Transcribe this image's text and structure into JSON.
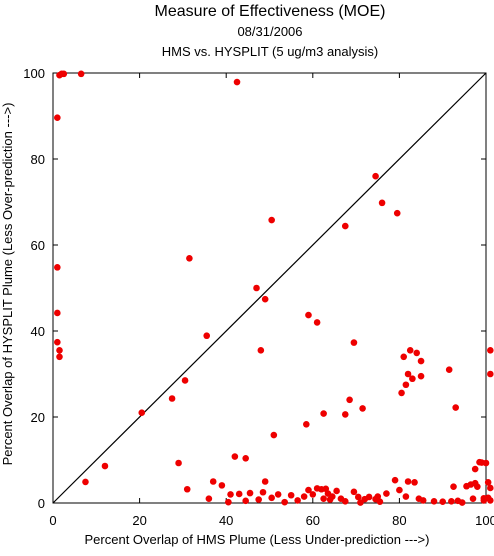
{
  "chart_data": {
    "type": "scatter",
    "title": "Measure of Effectiveness (MOE)",
    "subtitle_date": "08/31/2006",
    "subtitle_analysis": "HMS vs. HYSPLIT  (5 ug/m3 analysis)",
    "xlabel": "Percent Overlap of HMS Plume (Less Under-prediction --->)",
    "ylabel": "Percent Overlap of HYSPLIT Plume (Less Over-prediction --->)",
    "xlim": [
      0,
      100
    ],
    "ylim": [
      0,
      100
    ],
    "x_ticks": [
      0,
      20,
      40,
      60,
      80,
      100
    ],
    "y_ticks": [
      0,
      20,
      40,
      60,
      80,
      100
    ],
    "reference_line": "y = x",
    "grid": false,
    "point_color": "#ee0000",
    "points": [
      [
        1.5,
        99.5
      ],
      [
        2.0,
        99.8
      ],
      [
        2.5,
        99.8
      ],
      [
        6.5,
        99.8
      ],
      [
        1.0,
        89.6
      ],
      [
        1.0,
        54.8
      ],
      [
        1.0,
        44.2
      ],
      [
        1.0,
        37.4
      ],
      [
        1.5,
        35.5
      ],
      [
        1.5,
        34.0
      ],
      [
        7.5,
        4.9
      ],
      [
        12.0,
        8.6
      ],
      [
        20.5,
        21.0
      ],
      [
        27.5,
        24.3
      ],
      [
        29.0,
        9.3
      ],
      [
        30.5,
        28.5
      ],
      [
        31.5,
        56.9
      ],
      [
        31.0,
        3.2
      ],
      [
        35.5,
        38.9
      ],
      [
        42.5,
        97.9
      ],
      [
        44.5,
        10.4
      ],
      [
        47.0,
        50.0
      ],
      [
        48.0,
        35.5
      ],
      [
        49.0,
        47.4
      ],
      [
        50.5,
        65.8
      ],
      [
        51.0,
        15.8
      ],
      [
        58.5,
        18.3
      ],
      [
        59.0,
        43.7
      ],
      [
        61.0,
        42.0
      ],
      [
        62.5,
        20.8
      ],
      [
        67.5,
        64.4
      ],
      [
        67.5,
        20.6
      ],
      [
        68.5,
        24.0
      ],
      [
        69.5,
        37.3
      ],
      [
        71.5,
        22.0
      ],
      [
        74.5,
        76.0
      ],
      [
        76.0,
        69.8
      ],
      [
        79.5,
        67.4
      ],
      [
        80.5,
        25.6
      ],
      [
        81.5,
        27.5
      ],
      [
        81.0,
        34.0
      ],
      [
        82.0,
        30.0
      ],
      [
        82.5,
        35.5
      ],
      [
        83.0,
        28.9
      ],
      [
        84.0,
        34.9
      ],
      [
        85.0,
        33.0
      ],
      [
        85.0,
        29.5
      ],
      [
        91.5,
        31.0
      ],
      [
        93.0,
        22.2
      ],
      [
        101.0,
        35.5
      ],
      [
        101.0,
        30.0
      ],
      [
        37.0,
        5.0
      ],
      [
        39.0,
        4.1
      ],
      [
        42.0,
        10.8
      ],
      [
        36.0,
        1.0
      ],
      [
        40.5,
        0.2
      ],
      [
        41.0,
        2.0
      ],
      [
        43.0,
        2.1
      ],
      [
        44.5,
        0.5
      ],
      [
        45.5,
        2.3
      ],
      [
        47.5,
        0.8
      ],
      [
        48.5,
        2.5
      ],
      [
        49.0,
        5.0
      ],
      [
        50.5,
        1.2
      ],
      [
        52.0,
        2.0
      ],
      [
        53.5,
        0.2
      ],
      [
        55.0,
        1.8
      ],
      [
        56.5,
        0.6
      ],
      [
        58.0,
        1.5
      ],
      [
        59.0,
        3.0
      ],
      [
        60.0,
        2.0
      ],
      [
        61.0,
        3.4
      ],
      [
        62.0,
        3.2
      ],
      [
        62.5,
        1.0
      ],
      [
        63.0,
        3.3
      ],
      [
        63.5,
        2.2
      ],
      [
        64.0,
        0.8
      ],
      [
        64.5,
        1.5
      ],
      [
        65.5,
        2.8
      ],
      [
        66.5,
        1.0
      ],
      [
        67.5,
        0.4
      ],
      [
        69.5,
        2.6
      ],
      [
        70.5,
        1.4
      ],
      [
        71.0,
        0.1
      ],
      [
        72.0,
        0.9
      ],
      [
        73.0,
        1.4
      ],
      [
        74.5,
        0.9
      ],
      [
        75.0,
        1.5
      ],
      [
        75.5,
        0.3
      ],
      [
        77.0,
        2.2
      ],
      [
        79.0,
        5.3
      ],
      [
        80.0,
        3.0
      ],
      [
        81.5,
        1.5
      ],
      [
        82.0,
        5.0
      ],
      [
        83.5,
        4.8
      ],
      [
        84.5,
        1.0
      ],
      [
        85.5,
        0.6
      ],
      [
        88.0,
        0.4
      ],
      [
        90.0,
        0.3
      ],
      [
        92.0,
        0.4
      ],
      [
        92.5,
        3.8
      ],
      [
        93.5,
        0.5
      ],
      [
        94.5,
        0.1
      ],
      [
        95.5,
        3.9
      ],
      [
        96.5,
        4.3
      ],
      [
        97.0,
        1.0
      ],
      [
        97.5,
        4.6
      ],
      [
        98.0,
        3.8
      ],
      [
        98.5,
        9.5
      ],
      [
        99.0,
        9.4
      ],
      [
        99.5,
        1.1
      ],
      [
        100.0,
        9.3
      ],
      [
        100.5,
        4.8
      ],
      [
        101.0,
        0.6
      ],
      [
        101.0,
        3.5
      ],
      [
        100.5,
        1.2
      ],
      [
        97.5,
        7.9
      ],
      [
        99.5,
        0.6
      ]
    ]
  }
}
